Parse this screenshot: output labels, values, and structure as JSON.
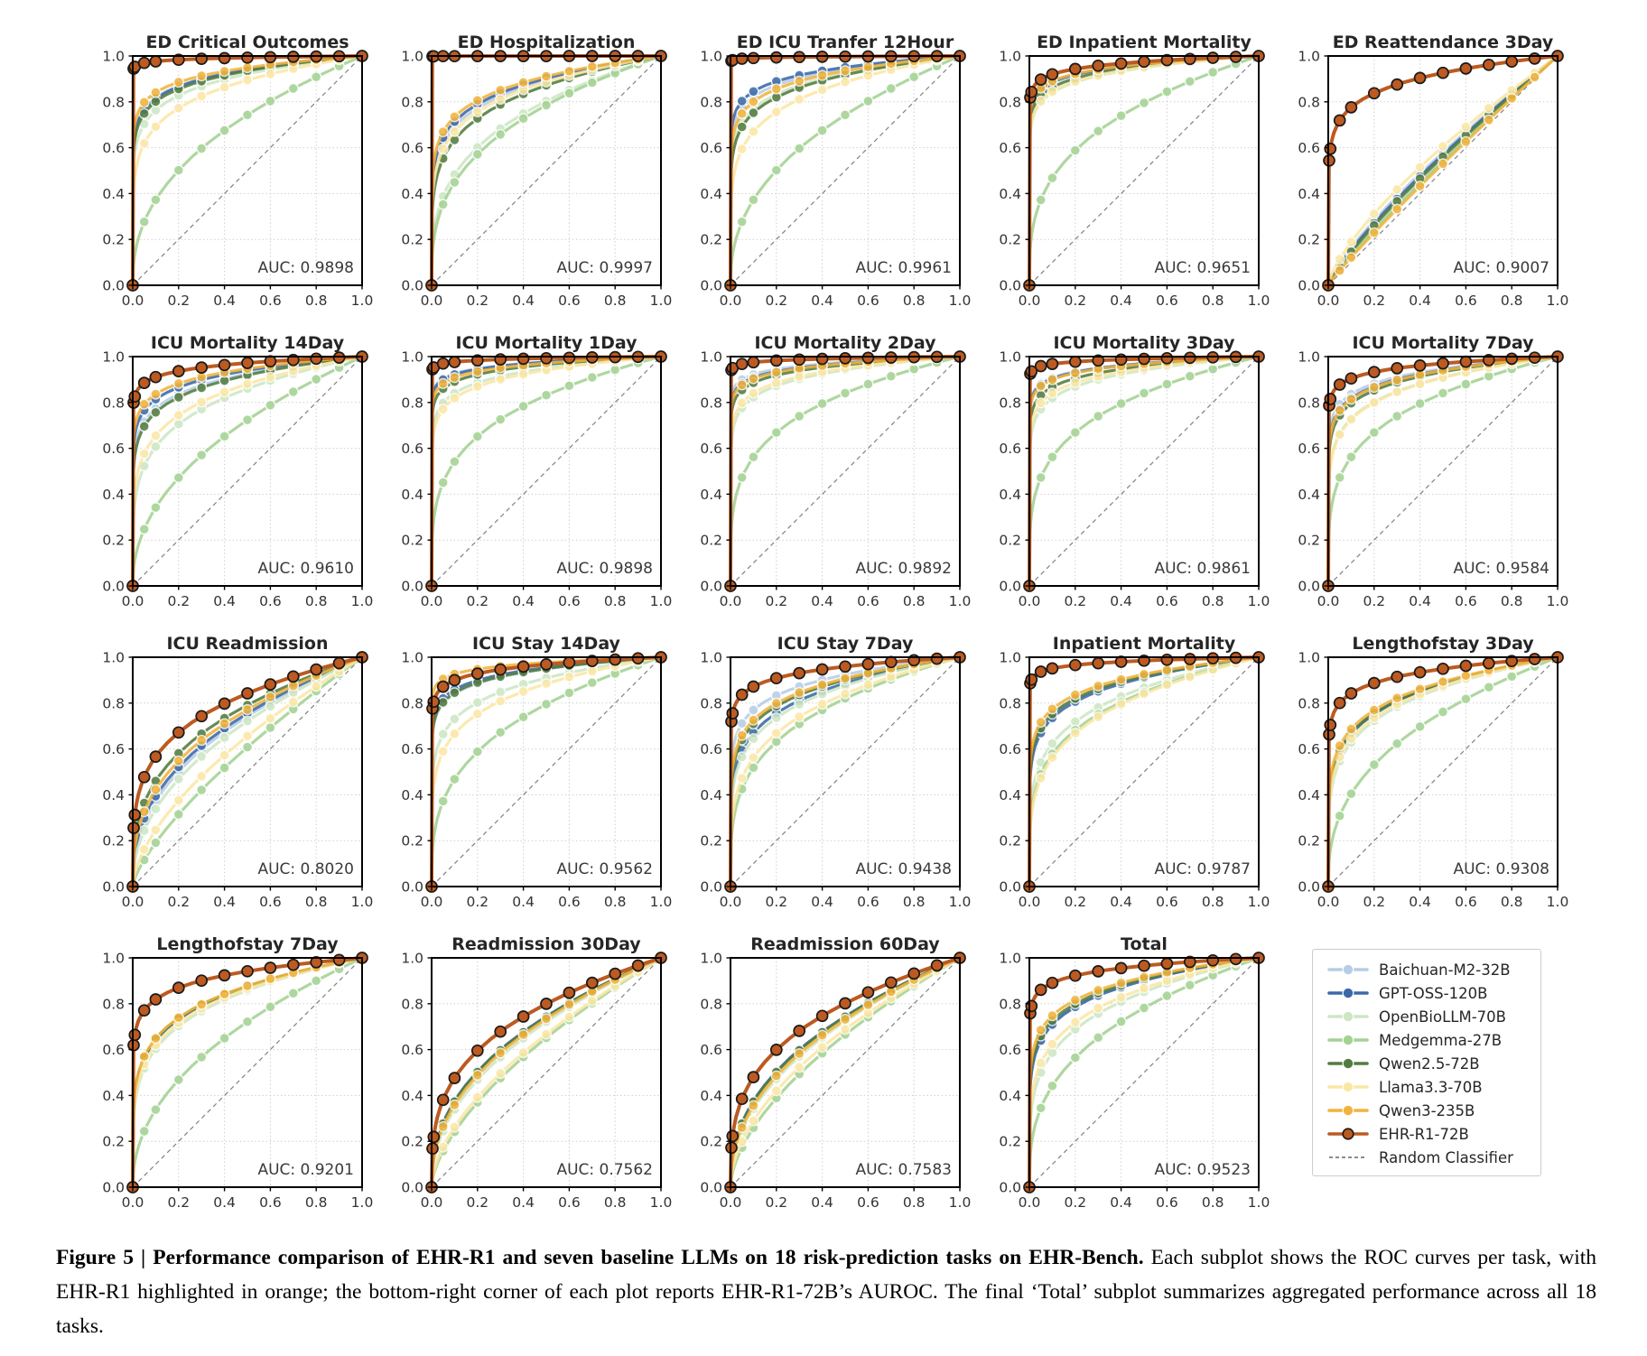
{
  "figure": {
    "caption_bold": "Figure 5 | Performance comparison of EHR-R1 and seven baseline LLMs on 18 risk-prediction tasks on EHR-Bench.",
    "caption_regular": " Each subplot shows the ROC curves per task, with EHR-R1 highlighted in orange; the bottom-right corner of each plot reports EHR-R1-72B’s AUROC. The final ‘Total’ subplot summarizes aggregated performance across all 18 tasks."
  },
  "models": [
    {
      "name": "Baichuan-M2-32B",
      "color": "#b7cde5",
      "highlight": false
    },
    {
      "name": "GPT-OSS-120B",
      "color": "#3b69a8",
      "highlight": false
    },
    {
      "name": "OpenBioLLM-70B",
      "color": "#cde6c4",
      "highlight": false
    },
    {
      "name": "Medgemma-27B",
      "color": "#a3d293",
      "highlight": false
    },
    {
      "name": "Qwen2.5-72B",
      "color": "#527c3f",
      "highlight": false
    },
    {
      "name": "Llama3.3-70B",
      "color": "#fbe7a4",
      "highlight": false
    },
    {
      "name": "Qwen3-235B",
      "color": "#f1b33c",
      "highlight": false
    },
    {
      "name": "EHR-R1-72B",
      "color": "#bc5a21",
      "highlight": true
    }
  ],
  "random_classifier": {
    "label": "Random Classifier",
    "color": "#777777",
    "style": "dashed"
  },
  "chart_data": {
    "type": "line",
    "subtype": "roc-curve-grid",
    "grid": "dotted 0.2 steps",
    "legend_position": "bottom-right cell of 4x5 grid",
    "x_ticks": [
      "0.0",
      "0.2",
      "0.4",
      "0.6",
      "0.8",
      "1.0"
    ],
    "y_ticks": [
      "0.0",
      "0.2",
      "0.4",
      "0.6",
      "0.8",
      "1.0"
    ],
    "xlim": [
      0,
      1
    ],
    "ylim": [
      0,
      1
    ],
    "series_order": [
      "Baichuan-M2-32B",
      "GPT-OSS-120B",
      "OpenBioLLM-70B",
      "Medgemma-27B",
      "Qwen2.5-72B",
      "Llama3.3-70B",
      "Qwen3-235B",
      "EHR-R1-72B"
    ],
    "note": "Each subplot is an ROC curve (FPR vs TPR). series_auc holds per-model AUCs estimated from the plotted curves, in series_order; the last value is EHR-R1-72B whose exact AUROC is printed in the subplot (auc_label).",
    "subplots": [
      {
        "title": "ED Critical Outcomes",
        "auc_label": "AUC: 0.9898",
        "series_auc": [
          0.92,
          0.918,
          0.895,
          0.7,
          0.912,
          0.862,
          0.93,
          0.9898
        ]
      },
      {
        "title": "ED Hospitalization",
        "auc_label": "AUC: 0.9997",
        "series_auc": [
          0.862,
          0.872,
          0.76,
          0.742,
          0.835,
          0.852,
          0.882,
          0.9997
        ]
      },
      {
        "title": "ED ICU Tranfer 12Hour",
        "auc_label": "AUC: 0.9961",
        "series_auc": [
          0.922,
          0.932,
          0.898,
          0.7,
          0.89,
          0.852,
          0.912,
          0.9961
        ]
      },
      {
        "title": "ED Inpatient Mortality",
        "auc_label": "AUC: 0.9651",
        "series_auc": [
          0.948,
          0.95,
          0.93,
          0.752,
          0.94,
          0.932,
          0.952,
          0.9651
        ]
      },
      {
        "title": "ED Reattendance 3Day",
        "auc_label": "AUC: 0.9007",
        "series_auc": [
          0.56,
          0.552,
          0.535,
          0.53,
          0.545,
          0.58,
          0.522,
          0.9007
        ]
      },
      {
        "title": "ICU Mortality 14Day",
        "auc_label": "AUC: 0.9610",
        "series_auc": [
          0.9,
          0.918,
          0.822,
          0.682,
          0.892,
          0.845,
          0.928,
          0.961
        ]
      },
      {
        "title": "ICU Mortality 1Day",
        "auc_label": "AUC: 0.9898",
        "series_auc": [
          0.968,
          0.966,
          0.93,
          0.79,
          0.952,
          0.92,
          0.96,
          0.9898
        ]
      },
      {
        "title": "ICU Mortality 2Day",
        "auc_label": "AUC: 0.9892",
        "series_auc": [
          0.966,
          0.96,
          0.922,
          0.8,
          0.95,
          0.93,
          0.958,
          0.9892
        ]
      },
      {
        "title": "ICU Mortality 3Day",
        "auc_label": "AUC: 0.9861",
        "series_auc": [
          0.96,
          0.958,
          0.92,
          0.8,
          0.942,
          0.93,
          0.956,
          0.9861
        ]
      },
      {
        "title": "ICU Mortality 7Day",
        "auc_label": "AUC: 0.9584",
        "series_auc": [
          0.928,
          0.92,
          0.88,
          0.8,
          0.91,
          0.878,
          0.918,
          0.9584
        ]
      },
      {
        "title": "ICU Readmission",
        "auc_label": "AUC: 0.8020",
        "series_auc": [
          0.7,
          0.712,
          0.68,
          0.582,
          0.748,
          0.622,
          0.728,
          0.802
        ]
      },
      {
        "title": "ICU Stay 14Day",
        "auc_label": "AUC: 0.9562",
        "series_auc": [
          0.93,
          0.938,
          0.88,
          0.752,
          0.932,
          0.85,
          0.968,
          0.9562
        ]
      },
      {
        "title": "ICU Stay 7Day",
        "auc_label": "AUC: 0.9438",
        "series_auc": [
          0.898,
          0.852,
          0.84,
          0.778,
          0.87,
          0.8,
          0.878,
          0.9438
        ]
      },
      {
        "title": "Inpatient Mortality",
        "auc_label": "AUC: 0.9787",
        "series_auc": [
          0.888,
          0.882,
          0.83,
          0.808,
          0.89,
          0.8,
          0.9,
          0.9787
        ]
      },
      {
        "title": "Lengthofstay 3Day",
        "auc_label": "AUC: 0.9308",
        "series_auc": [
          0.85,
          0.85,
          0.832,
          0.718,
          0.852,
          0.84,
          0.86,
          0.9308
        ]
      },
      {
        "title": "Lengthofstay 7Day",
        "auc_label": "AUC: 0.9201",
        "series_auc": [
          0.84,
          0.838,
          0.82,
          0.68,
          0.84,
          0.828,
          0.842,
          0.9201
        ]
      },
      {
        "title": "Readmission 30Day",
        "auc_label": "AUC: 0.7562",
        "series_auc": [
          0.7,
          0.702,
          0.68,
          0.618,
          0.7,
          0.632,
          0.692,
          0.7562
        ]
      },
      {
        "title": "Readmission 60Day",
        "auc_label": "AUC: 0.7583",
        "series_auc": [
          0.7,
          0.702,
          0.682,
          0.63,
          0.7,
          0.65,
          0.69,
          0.7583
        ]
      },
      {
        "title": "Total",
        "auc_label": "AUC: 0.9523",
        "series_auc": [
          0.872,
          0.87,
          0.812,
          0.738,
          0.878,
          0.83,
          0.888,
          0.9523
        ]
      }
    ]
  }
}
